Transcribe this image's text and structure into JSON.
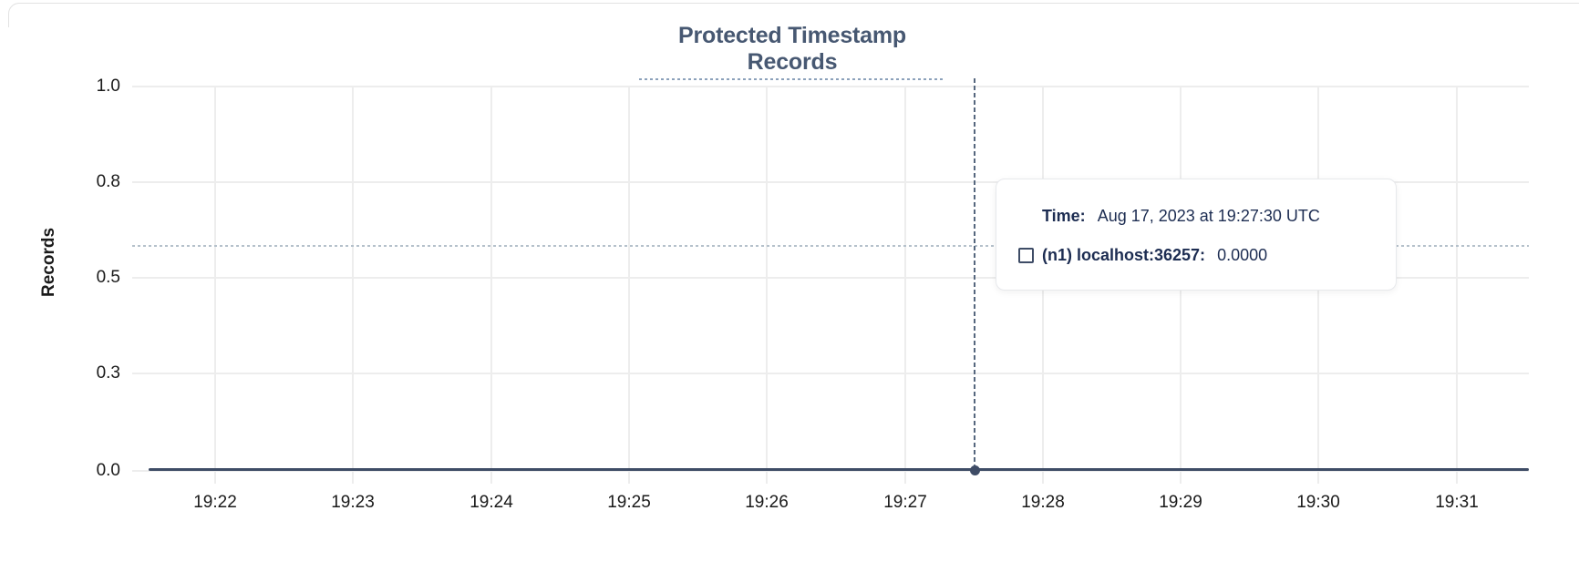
{
  "chart_data": {
    "type": "line",
    "title": "Protected Timestamp Records",
    "xlabel": "",
    "ylabel": "Records",
    "x_ticks": [
      "19:22",
      "19:23",
      "19:24",
      "19:25",
      "19:26",
      "19:27",
      "19:28",
      "19:29",
      "19:30",
      "19:31"
    ],
    "y_ticks": [
      "1.0",
      "0.8",
      "0.5",
      "0.3",
      "0.0"
    ],
    "ylim": [
      0,
      1.0
    ],
    "grid": true,
    "legend_position": "tooltip",
    "series": [
      {
        "name": "(n1) localhost:36257",
        "color": "#3e4c66",
        "x": [
          "19:22",
          "19:23",
          "19:24",
          "19:25",
          "19:26",
          "19:27",
          "19:28",
          "19:29",
          "19:30",
          "19:31"
        ],
        "values": [
          0,
          0,
          0,
          0,
          0,
          0,
          0,
          0,
          0,
          0
        ]
      }
    ],
    "hovered_point": {
      "time": "19:27:30",
      "value": 0.0
    }
  },
  "tooltip": {
    "time_label": "Time:",
    "time_value": "Aug 17, 2023 at 19:27:30 UTC",
    "series_label": "(n1) localhost:36257:",
    "series_value": "0.0000"
  },
  "colors": {
    "title": "#475872",
    "title_underline": "#8ca1bb",
    "series_line": "#3e4c66",
    "tooltip_text": "#1d2d52",
    "tooltip_border": "#e7e9ec",
    "gridline": "#ededed",
    "crosshair_dashed": "#56677e",
    "crosshair_dotted": "#b5c1cb",
    "card_border": "#e2e2e2",
    "axis_text": "#1a1a1a"
  }
}
